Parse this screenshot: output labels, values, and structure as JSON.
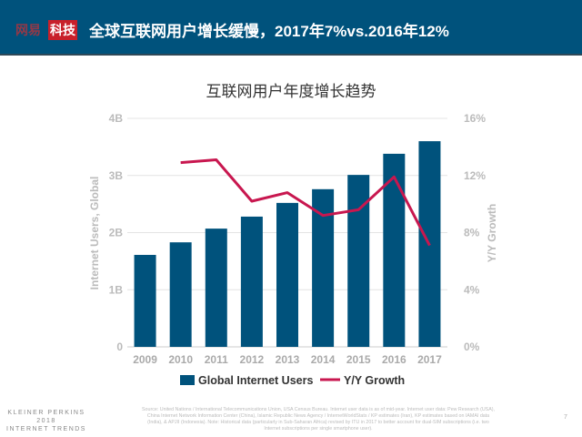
{
  "header": {
    "brand_part1": "网易",
    "brand_part2": "科技",
    "title": "全球互联网用户增长缓慢，2017年7%vs.2016年12%"
  },
  "chart_data": {
    "type": "bar+line",
    "title": "互联网用户年度增长趋势",
    "categories": [
      "2009",
      "2010",
      "2011",
      "2012",
      "2013",
      "2014",
      "2015",
      "2016",
      "2017"
    ],
    "series": [
      {
        "name": "Global Internet Users",
        "type": "bar",
        "axis": "left",
        "unit": "B",
        "color": "#00527c",
        "values": [
          1.61,
          1.83,
          2.07,
          2.28,
          2.52,
          2.76,
          3.01,
          3.38,
          3.6
        ]
      },
      {
        "name": "Y/Y Growth",
        "type": "line",
        "axis": "right",
        "unit": "%",
        "color": "#c8174f",
        "values": [
          null,
          12.9,
          13.1,
          10.2,
          10.8,
          9.2,
          9.6,
          11.9,
          7.1
        ]
      }
    ],
    "ylabel_left": "Internet Users, Global",
    "ylabel_right": "Y/Y Growth",
    "ylim_left": [
      0,
      4
    ],
    "ylim_right": [
      0,
      16
    ],
    "yticks_left": [
      "0",
      "1B",
      "2B",
      "3B",
      "4B"
    ],
    "yticks_right": [
      "0%",
      "4%",
      "8%",
      "12%",
      "16%"
    ],
    "grid": true,
    "legend": "bottom"
  },
  "footer": {
    "brand": [
      "KLEINER PERKINS",
      "2018",
      "INTERNET TRENDS"
    ],
    "source": "Source: United Nations / International Telecommunications Union, USA Census Bureau. Internet user data is as of mid-year. Internet user data: Pew Research (USA), China Internet Network Information Center (China), Islamic Republic News Agency / InternetWorldStats / KP estimates (Iran), KP estimates based on IAMAI data (India), & APJII (Indonesia). Note: Historical data (particularly in Sub-Saharan Africa) revised by ITU in 2017 to better account for dual-SIM subscriptions (i.e. two Internet subscriptions per single smartphone user).",
    "page": "7"
  }
}
